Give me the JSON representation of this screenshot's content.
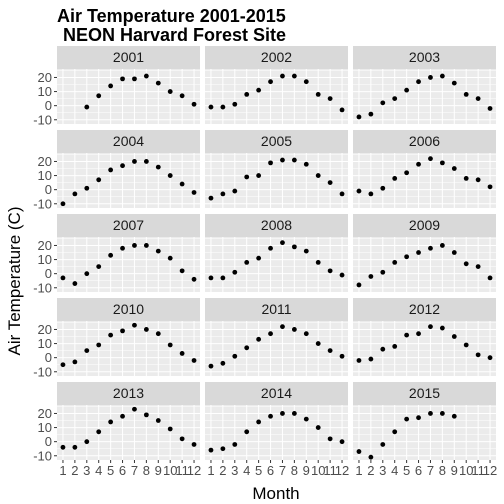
{
  "chart_data": {
    "type": "scatter",
    "title_line1": "Air Temperature 2001-2015",
    "title_line2": "NEON Harvard Forest Site",
    "xlabel": "Month",
    "ylabel": "Air Temperature (C)",
    "xlim": [
      0.5,
      12.5
    ],
    "ylim": [
      -13,
      26
    ],
    "xticks": [
      1,
      2,
      3,
      4,
      5,
      6,
      7,
      8,
      9,
      10,
      11,
      12
    ],
    "xtick_labels": [
      "1",
      "2",
      "3",
      "4",
      "5",
      "6",
      "7",
      "8",
      "9",
      "10",
      "11",
      "12"
    ],
    "yticks": [
      -10,
      0,
      10,
      20
    ],
    "ytick_labels": [
      "-10",
      "0",
      "10",
      "20"
    ],
    "grid": true,
    "colors": {
      "panel_bg": "#ebebeb",
      "strip_bg": "#d9d9d9",
      "grid": "#ffffff",
      "point": "#000000"
    },
    "panels": [
      {
        "year": "2001",
        "values": [
          null,
          null,
          -1,
          7,
          14,
          19,
          19,
          21,
          16,
          10,
          7,
          1
        ]
      },
      {
        "year": "2002",
        "values": [
          -1,
          -1,
          1,
          8,
          11,
          17,
          21,
          21,
          17,
          8,
          5,
          -3
        ]
      },
      {
        "year": "2003",
        "values": [
          -8,
          -6,
          2,
          5,
          11,
          17,
          20,
          21,
          16,
          8,
          5,
          -2
        ]
      },
      {
        "year": "2004",
        "values": [
          -10,
          -3,
          1,
          7,
          14,
          17,
          20,
          20,
          16,
          10,
          4,
          -2
        ]
      },
      {
        "year": "2005",
        "values": [
          -6,
          -3,
          -1,
          9,
          10,
          19,
          21,
          21,
          18,
          10,
          5,
          -3
        ]
      },
      {
        "year": "2006",
        "values": [
          -1,
          -3,
          1,
          8,
          12,
          18,
          22,
          19,
          15,
          8,
          7,
          2
        ]
      },
      {
        "year": "2007",
        "values": [
          -3,
          -7,
          0,
          5,
          13,
          18,
          20,
          20,
          16,
          11,
          2,
          -4
        ]
      },
      {
        "year": "2008",
        "values": [
          -3,
          -3,
          1,
          8,
          11,
          18,
          22,
          19,
          16,
          8,
          2,
          -1
        ]
      },
      {
        "year": "2009",
        "values": [
          -8,
          -2,
          1,
          8,
          12,
          15,
          18,
          20,
          15,
          7,
          5,
          -3
        ]
      },
      {
        "year": "2010",
        "values": [
          -5,
          -3,
          5,
          9,
          16,
          19,
          23,
          20,
          17,
          9,
          3,
          -2
        ]
      },
      {
        "year": "2011",
        "values": [
          -6,
          -4,
          1,
          7,
          13,
          17,
          22,
          20,
          17,
          10,
          5,
          1
        ]
      },
      {
        "year": "2012",
        "values": [
          -2,
          -1,
          6,
          8,
          16,
          17,
          22,
          21,
          15,
          9,
          2,
          0
        ]
      },
      {
        "year": "2013",
        "values": [
          -4,
          -4,
          0,
          7,
          14,
          18,
          23,
          19,
          15,
          9,
          2,
          -2
        ]
      },
      {
        "year": "2014",
        "values": [
          -6,
          -5,
          -2,
          7,
          14,
          18,
          20,
          20,
          16,
          10,
          2,
          0
        ]
      },
      {
        "year": "2015",
        "values": [
          -7,
          -11,
          -2,
          7,
          16,
          17,
          20,
          20,
          18,
          null,
          null,
          null
        ]
      }
    ]
  }
}
